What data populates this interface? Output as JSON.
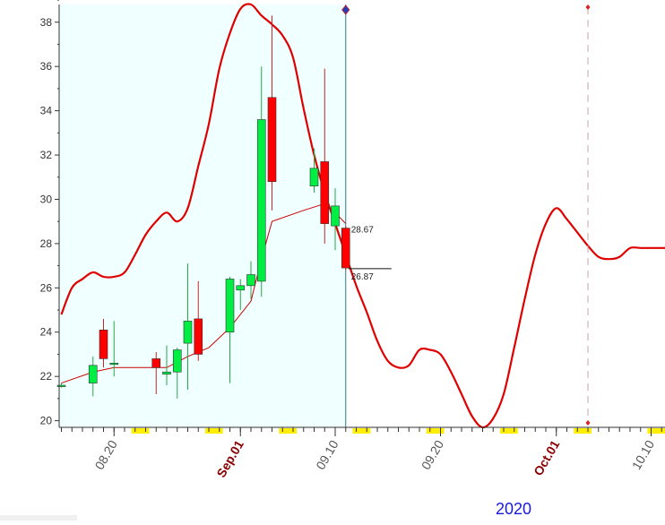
{
  "chart_data": {
    "type": "candlestick",
    "year_label": "2020",
    "colors": {
      "up": "#00ee44",
      "down": "#ff0000",
      "highlight_bg": "#f0ffff",
      "cursor_line": "#2f7f7f",
      "envelope": "#e00000",
      "moving_average": "#cc0000",
      "month_label": "#8b0000",
      "year_label": "#1a1ad6",
      "weekend_marker": "#ffee00"
    },
    "y_axis": {
      "min": 19.7,
      "max": 38.8,
      "ticks": [
        {
          "value": 20,
          "label": "20"
        },
        {
          "value": 22,
          "label": "22"
        },
        {
          "value": 24,
          "label": "24"
        },
        {
          "value": 26,
          "label": "26"
        },
        {
          "value": 28,
          "label": "28"
        },
        {
          "value": 30,
          "label": "30"
        },
        {
          "value": 32,
          "label": "32"
        },
        {
          "value": 34,
          "label": "34"
        },
        {
          "value": 36,
          "label": "36"
        },
        {
          "value": 38,
          "label": "38"
        }
      ]
    },
    "x_axis": {
      "start_date": "2020-08-15",
      "end_date": "2020-10-12",
      "ticks": [
        {
          "date": "2020-08-20",
          "label": "08.20",
          "month_start": false
        },
        {
          "date": "2020-09-01",
          "label": "Sep.01",
          "month_start": true
        },
        {
          "date": "2020-09-10",
          "label": "09.10",
          "month_start": false
        },
        {
          "date": "2020-09-20",
          "label": "09.20",
          "month_start": false
        },
        {
          "date": "2020-10-01",
          "label": "Oct.01",
          "month_start": true
        },
        {
          "date": "2020-10-10",
          "label": "10.10",
          "month_start": false
        }
      ]
    },
    "highlight_range": {
      "start": "2020-08-15",
      "end": "2020-09-11"
    },
    "cursor_date": "2020-09-11",
    "dashed_marker_date": "2020-10-04",
    "weekend_markers": [
      {
        "start": "2020-08-22",
        "end": "2020-08-23"
      },
      {
        "start": "2020-08-29",
        "end": "2020-08-30"
      },
      {
        "start": "2020-09-05",
        "end": "2020-09-06"
      },
      {
        "start": "2020-09-12",
        "end": "2020-09-13"
      },
      {
        "start": "2020-09-19",
        "end": "2020-09-20"
      },
      {
        "start": "2020-09-26",
        "end": "2020-09-27"
      },
      {
        "start": "2020-10-03",
        "end": "2020-10-04"
      },
      {
        "start": "2020-10-10",
        "end": "2020-10-11"
      }
    ],
    "candles": [
      {
        "date": "2020-08-15",
        "open": 21.6,
        "high": 21.7,
        "low": 21.5,
        "close": 21.6
      },
      {
        "date": "2020-08-18",
        "open": 21.7,
        "high": 22.9,
        "low": 21.1,
        "close": 22.5
      },
      {
        "date": "2020-08-19",
        "open": 24.1,
        "high": 24.6,
        "low": 22.4,
        "close": 22.8
      },
      {
        "date": "2020-08-20",
        "open": 22.6,
        "high": 24.5,
        "low": 22.0,
        "close": 22.6
      },
      {
        "date": "2020-08-24",
        "open": 22.8,
        "high": 23.1,
        "low": 21.2,
        "close": 22.4
      },
      {
        "date": "2020-08-25",
        "open": 22.1,
        "high": 23.4,
        "low": 21.6,
        "close": 22.2
      },
      {
        "date": "2020-08-26",
        "open": 22.2,
        "high": 23.3,
        "low": 21.0,
        "close": 23.2
      },
      {
        "date": "2020-08-27",
        "open": 23.5,
        "high": 27.1,
        "low": 21.4,
        "close": 24.5
      },
      {
        "date": "2020-08-28",
        "open": 24.6,
        "high": 26.3,
        "low": 22.7,
        "close": 23.0
      },
      {
        "date": "2020-08-31",
        "open": 24.0,
        "high": 26.5,
        "low": 21.7,
        "close": 26.4
      },
      {
        "date": "2020-09-01",
        "open": 25.9,
        "high": 26.4,
        "low": 25.0,
        "close": 26.1
      },
      {
        "date": "2020-09-02",
        "open": 26.1,
        "high": 27.2,
        "low": 25.5,
        "close": 26.6
      },
      {
        "date": "2020-09-03",
        "open": 26.3,
        "high": 36.0,
        "low": 25.6,
        "close": 33.6
      },
      {
        "date": "2020-09-04",
        "open": 34.6,
        "high": 38.3,
        "low": 29.5,
        "close": 30.8
      },
      {
        "date": "2020-09-08",
        "open": 30.6,
        "high": 32.3,
        "low": 30.3,
        "close": 31.4
      },
      {
        "date": "2020-09-09",
        "open": 31.7,
        "high": 35.9,
        "low": 28.0,
        "close": 28.9
      },
      {
        "date": "2020-09-10",
        "open": 28.8,
        "high": 30.5,
        "low": 27.7,
        "close": 29.7
      },
      {
        "date": "2020-09-11",
        "open": 28.7,
        "high": 28.8,
        "low": 26.8,
        "close": 26.9
      }
    ],
    "moving_average": {
      "dates": [
        "2020-08-15",
        "2020-08-18",
        "2020-08-20",
        "2020-08-23",
        "2020-08-25",
        "2020-08-27",
        "2020-08-29",
        "2020-08-31",
        "2020-09-02",
        "2020-09-03",
        "2020-09-04",
        "2020-09-07",
        "2020-09-09",
        "2020-09-10",
        "2020-09-11"
      ],
      "values": [
        21.7,
        22.2,
        22.4,
        22.4,
        22.4,
        22.9,
        23.3,
        24.2,
        25.4,
        27.3,
        29.0,
        29.5,
        29.8,
        29.4,
        28.9
      ]
    },
    "envelope": {
      "dates": [
        "2020-08-15",
        "2020-08-16",
        "2020-08-17",
        "2020-08-18",
        "2020-08-19",
        "2020-08-20",
        "2020-08-21",
        "2020-08-22",
        "2020-08-23",
        "2020-08-24",
        "2020-08-25",
        "2020-08-26",
        "2020-08-27",
        "2020-08-28",
        "2020-08-29",
        "2020-08-30",
        "2020-08-31",
        "2020-09-01",
        "2020-09-02",
        "2020-09-03",
        "2020-09-04",
        "2020-09-05",
        "2020-09-06",
        "2020-09-07",
        "2020-09-08",
        "2020-09-09",
        "2020-09-10",
        "2020-09-11",
        "2020-09-12",
        "2020-09-13",
        "2020-09-14",
        "2020-09-15",
        "2020-09-16",
        "2020-09-17",
        "2020-09-18",
        "2020-09-19",
        "2020-09-20",
        "2020-09-21",
        "2020-09-22",
        "2020-09-23",
        "2020-09-24",
        "2020-09-25",
        "2020-09-26",
        "2020-09-27",
        "2020-09-28",
        "2020-09-29",
        "2020-09-30",
        "2020-10-01",
        "2020-10-02",
        "2020-10-03",
        "2020-10-04",
        "2020-10-05",
        "2020-10-06",
        "2020-10-07",
        "2020-10-08",
        "2020-10-09",
        "2020-10-10",
        "2020-10-11",
        "2020-10-12"
      ],
      "values": [
        24.8,
        26.0,
        26.4,
        26.7,
        26.5,
        26.5,
        26.7,
        27.5,
        28.4,
        29.0,
        29.4,
        29.0,
        29.6,
        31.5,
        33.4,
        35.9,
        37.5,
        38.6,
        38.8,
        38.3,
        37.9,
        37.4,
        36.4,
        34.1,
        32.0,
        30.3,
        28.9,
        27.5,
        26.1,
        24.9,
        23.6,
        22.7,
        22.4,
        22.5,
        23.2,
        23.2,
        23.0,
        22.2,
        21.2,
        20.2,
        19.7,
        20.1,
        21.2,
        23.3,
        25.5,
        27.5,
        28.9,
        29.6,
        29.1,
        28.5,
        27.9,
        27.4,
        27.3,
        27.4,
        27.8,
        27.8,
        27.8,
        27.8,
        27.8
      ],
      "note": ""
    },
    "annotations": [
      {
        "date": "2020-09-11",
        "value": 28.67,
        "label": "28.67"
      },
      {
        "date": "2020-09-11",
        "value": 26.87,
        "label": "26.87"
      }
    ]
  }
}
